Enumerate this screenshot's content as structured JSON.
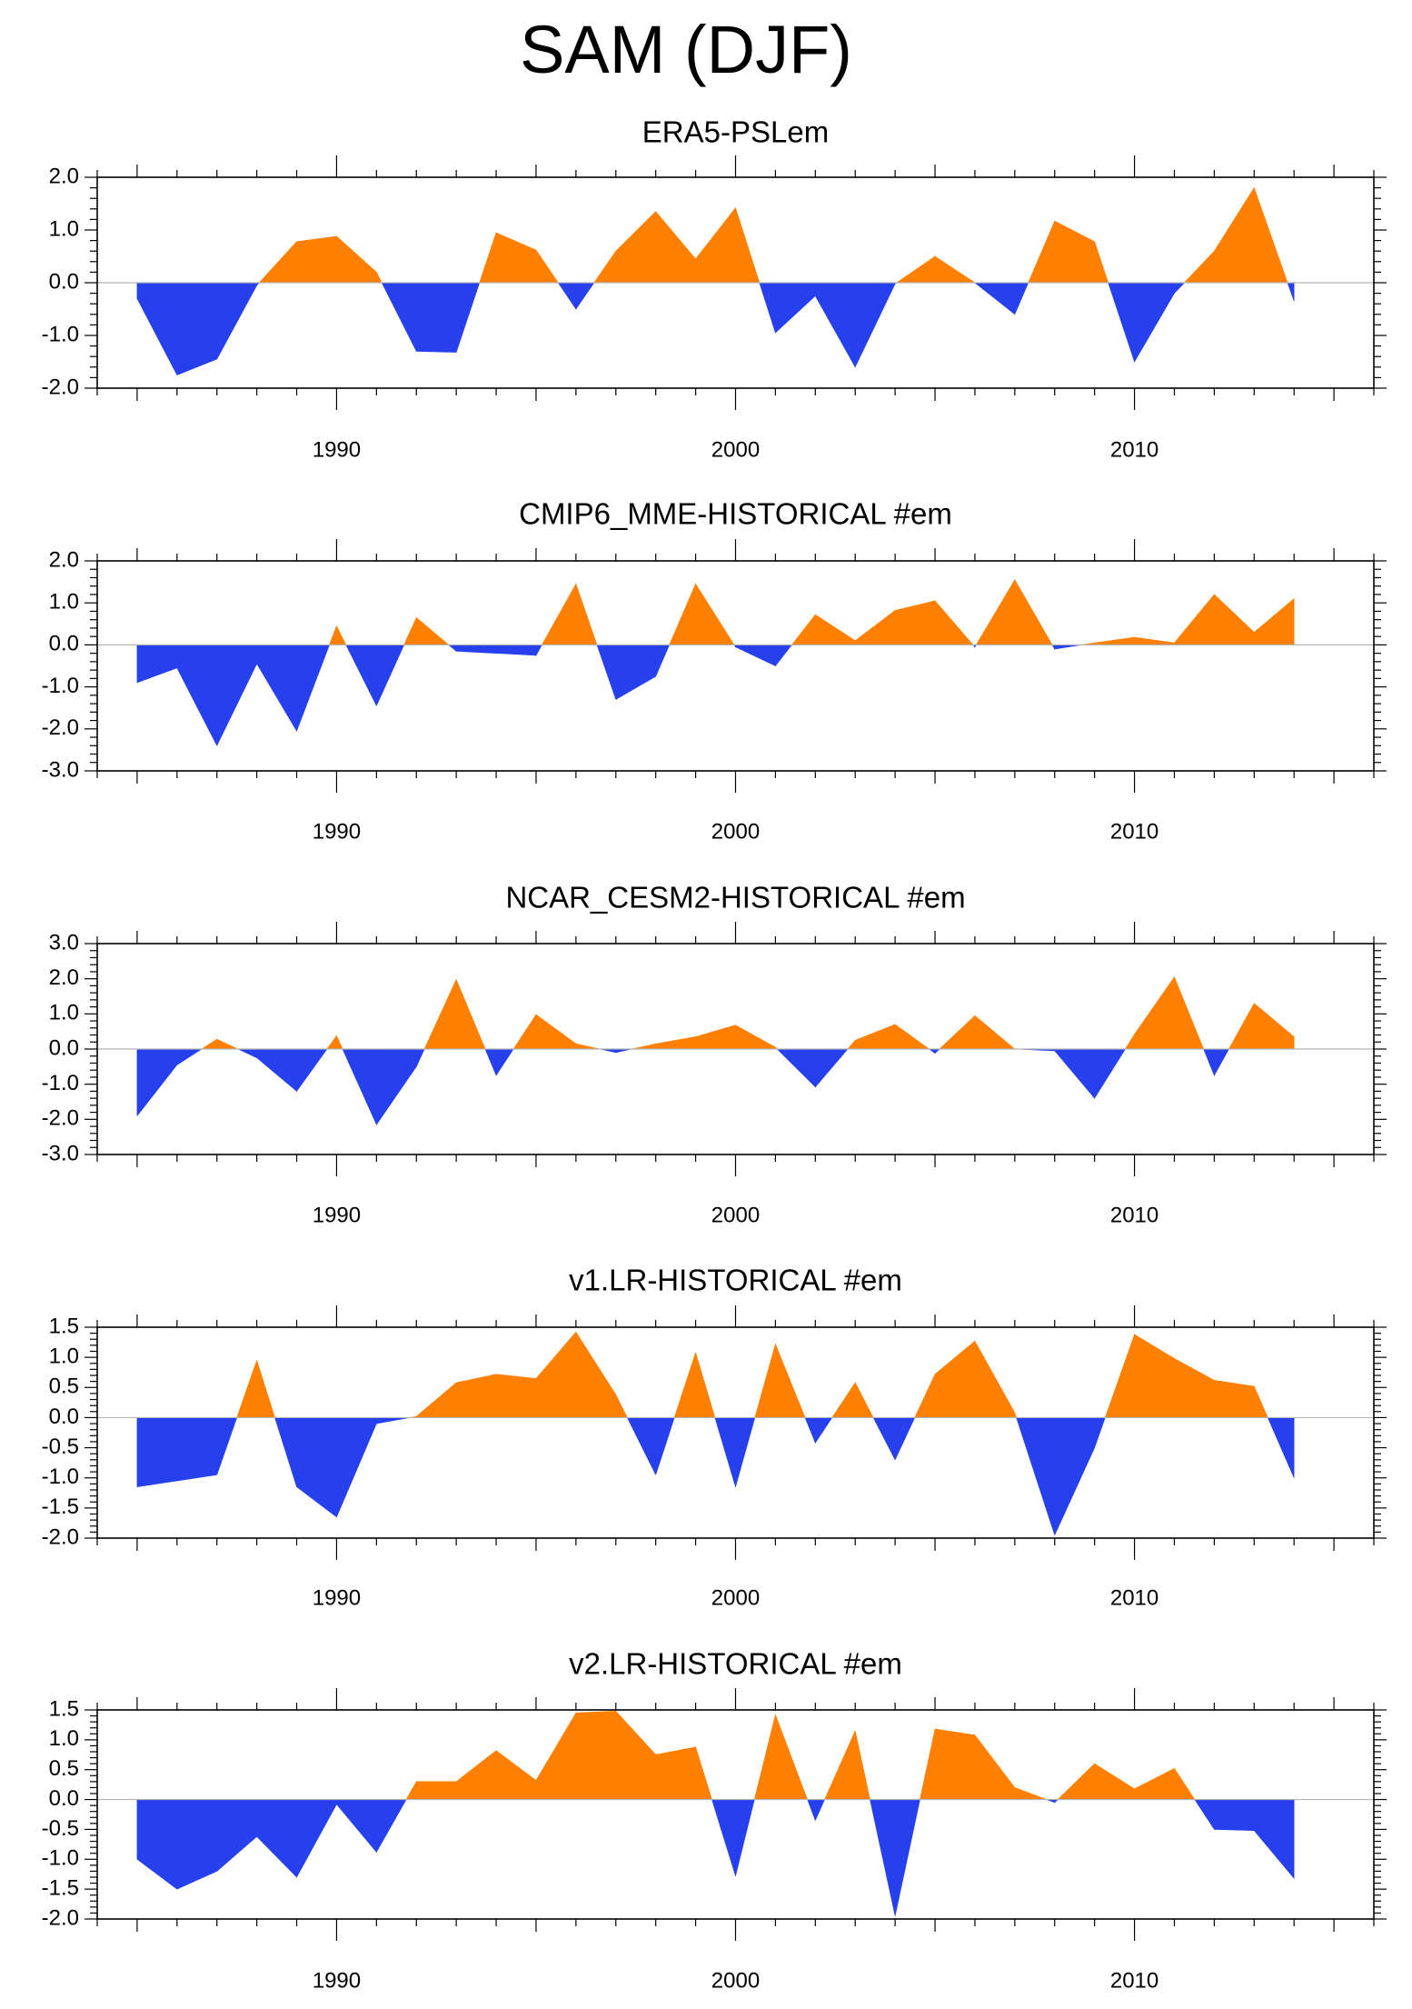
{
  "figure": {
    "title": "SAM (DJF)"
  },
  "chart_data": [
    {
      "type": "area",
      "title": "ERA5-PSLem",
      "x": [
        1985,
        1986,
        1987,
        1988,
        1989,
        1990,
        1991,
        1992,
        1993,
        1994,
        1995,
        1996,
        1997,
        1998,
        1999,
        2000,
        2001,
        2002,
        2003,
        2004,
        2005,
        2006,
        2007,
        2008,
        2009,
        2010,
        2011,
        2012,
        2013,
        2014
      ],
      "values": [
        -0.3,
        -1.75,
        -1.45,
        -0.05,
        0.78,
        0.88,
        0.2,
        -1.3,
        -1.32,
        0.95,
        0.62,
        -0.5,
        0.6,
        1.35,
        0.45,
        1.42,
        -0.95,
        -0.25,
        -1.6,
        -0.02,
        0.5,
        0.0,
        -0.6,
        1.17,
        0.78,
        -1.5,
        -0.2,
        0.6,
        1.8,
        -0.35
      ],
      "xlim": [
        1984,
        2016
      ],
      "ylim": [
        -2.0,
        2.0
      ],
      "yticks": [
        -2.0,
        -1.0,
        0.0,
        1.0,
        2.0
      ],
      "ytick_labels": [
        "-2.0",
        "-1.0",
        "0.0",
        "1.0",
        "2.0"
      ],
      "xticks": [
        1990,
        2000,
        2010
      ],
      "xtick_labels": [
        "1990",
        "2000",
        "2010"
      ],
      "positive_color": "#ff8000",
      "negative_color": "#2640ee"
    },
    {
      "type": "area",
      "title": "CMIP6_MME-HISTORICAL  #em",
      "x": [
        1985,
        1986,
        1987,
        1988,
        1989,
        1990,
        1991,
        1992,
        1993,
        1994,
        1995,
        1996,
        1997,
        1998,
        1999,
        2000,
        2001,
        2002,
        2003,
        2004,
        2005,
        2006,
        2007,
        2008,
        2009,
        2010,
        2011,
        2012,
        2013,
        2014
      ],
      "values": [
        -0.9,
        -0.55,
        -2.4,
        -0.45,
        -2.05,
        0.45,
        -1.45,
        0.65,
        -0.15,
        -0.2,
        -0.25,
        1.45,
        -1.3,
        -0.75,
        1.45,
        -0.05,
        -0.5,
        0.72,
        0.1,
        0.82,
        1.05,
        -0.05,
        1.55,
        -0.1,
        0.05,
        0.18,
        0.05,
        1.2,
        0.3,
        1.1
      ],
      "xlim": [
        1984,
        2016
      ],
      "ylim": [
        -3.0,
        2.0
      ],
      "yticks": [
        -3.0,
        -2.0,
        -1.0,
        0.0,
        1.0,
        2.0
      ],
      "ytick_labels": [
        "-3.0",
        "-2.0",
        "-1.0",
        "0.0",
        "1.0",
        "2.0"
      ],
      "xticks": [
        1990,
        2000,
        2010
      ],
      "xtick_labels": [
        "1990",
        "2000",
        "2010"
      ],
      "positive_color": "#ff8000",
      "negative_color": "#2640ee"
    },
    {
      "type": "area",
      "title": "NCAR_CESM2-HISTORICAL  #em",
      "x": [
        1985,
        1986,
        1987,
        1988,
        1989,
        1990,
        1991,
        1992,
        1993,
        1994,
        1995,
        1996,
        1997,
        1998,
        1999,
        2000,
        2001,
        2002,
        2003,
        2004,
        2005,
        2006,
        2007,
        2008,
        2009,
        2010,
        2011,
        2012,
        2013,
        2014
      ],
      "values": [
        -1.9,
        -0.45,
        0.28,
        -0.25,
        -1.2,
        0.38,
        -2.15,
        -0.5,
        1.98,
        -0.75,
        0.98,
        0.15,
        -0.1,
        0.15,
        0.35,
        0.68,
        0.05,
        -1.08,
        0.25,
        0.7,
        -0.12,
        0.95,
        0.0,
        -0.05,
        -1.4,
        0.42,
        2.05,
        -0.75,
        1.3,
        0.35
      ],
      "xlim": [
        1984,
        2016
      ],
      "ylim": [
        -3.0,
        3.0
      ],
      "yticks": [
        -3.0,
        -2.0,
        -1.0,
        0.0,
        1.0,
        2.0,
        3.0
      ],
      "ytick_labels": [
        "-3.0",
        "-2.0",
        "-1.0",
        "0.0",
        "1.0",
        "2.0",
        "3.0"
      ],
      "xticks": [
        1990,
        2000,
        2010
      ],
      "xtick_labels": [
        "1990",
        "2000",
        "2010"
      ],
      "positive_color": "#ff8000",
      "negative_color": "#2640ee"
    },
    {
      "type": "area",
      "title": "v1.LR-HISTORICAL  #em",
      "x": [
        1985,
        1986,
        1987,
        1988,
        1989,
        1990,
        1991,
        1992,
        1993,
        1994,
        1995,
        1996,
        1997,
        1998,
        1999,
        2000,
        2001,
        2002,
        2003,
        2004,
        2005,
        2006,
        2007,
        2008,
        2009,
        2010,
        2011,
        2012,
        2013,
        2014
      ],
      "values": [
        -1.15,
        -1.05,
        -0.95,
        0.95,
        -1.15,
        -1.65,
        -0.1,
        0.02,
        0.58,
        0.72,
        0.65,
        1.42,
        0.38,
        -0.95,
        1.08,
        -1.15,
        1.22,
        -0.42,
        0.58,
        -0.7,
        0.72,
        1.27,
        0.08,
        -1.95,
        -0.5,
        1.38,
        0.98,
        0.62,
        0.52,
        -1.0
      ],
      "xlim": [
        1984,
        2016
      ],
      "ylim": [
        -2.0,
        1.5
      ],
      "yticks": [
        -2.0,
        -1.5,
        -1.0,
        -0.5,
        0.0,
        0.5,
        1.0,
        1.5
      ],
      "ytick_labels": [
        "-2.0",
        "-1.5",
        "-1.0",
        "-0.5",
        "0.0",
        "0.5",
        "1.0",
        "1.5"
      ],
      "xticks": [
        1990,
        2000,
        2010
      ],
      "xtick_labels": [
        "1990",
        "2000",
        "2010"
      ],
      "positive_color": "#ff8000",
      "negative_color": "#2640ee"
    },
    {
      "type": "area",
      "title": "v2.LR-HISTORICAL  #em",
      "x": [
        1985,
        1986,
        1987,
        1988,
        1989,
        1990,
        1991,
        1992,
        1993,
        1994,
        1995,
        1996,
        1997,
        1998,
        1999,
        2000,
        2001,
        2002,
        2003,
        2004,
        2005,
        2006,
        2007,
        2008,
        2009,
        2010,
        2011,
        2012,
        2013,
        2014
      ],
      "values": [
        -1.0,
        -1.5,
        -1.2,
        -0.62,
        -1.3,
        -0.08,
        -0.88,
        0.3,
        0.3,
        0.82,
        0.32,
        1.45,
        1.48,
        0.75,
        0.88,
        -1.28,
        1.42,
        -0.35,
        1.15,
        -1.95,
        1.18,
        1.08,
        0.2,
        -0.05,
        0.6,
        0.18,
        0.52,
        -0.5,
        -0.52,
        -1.32
      ],
      "xlim": [
        1984,
        2016
      ],
      "ylim": [
        -2.0,
        1.5
      ],
      "yticks": [
        -2.0,
        -1.5,
        -1.0,
        -0.5,
        0.0,
        0.5,
        1.0,
        1.5
      ],
      "ytick_labels": [
        "-2.0",
        "-1.5",
        "-1.0",
        "-0.5",
        "0.0",
        "0.5",
        "1.0",
        "1.5"
      ],
      "xticks": [
        1990,
        2000,
        2010
      ],
      "xtick_labels": [
        "1990",
        "2000",
        "2010"
      ],
      "positive_color": "#ff8000",
      "negative_color": "#2640ee"
    }
  ]
}
